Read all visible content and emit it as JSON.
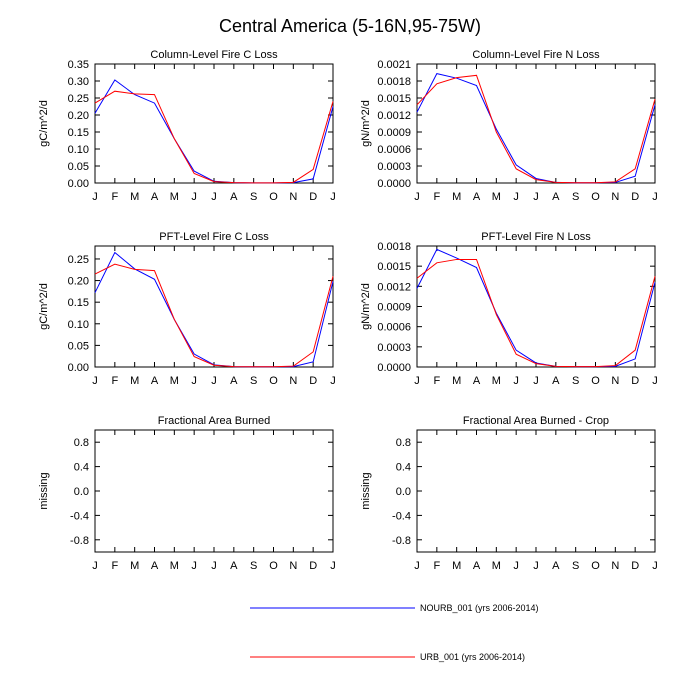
{
  "page_title": "Central America (5-16N,95-75W)",
  "colors": {
    "nourb": "#0000ff",
    "urb": "#ff0000",
    "axis": "#000000"
  },
  "legend": [
    {
      "label": "NOURB_001 (yrs 2006-2014)",
      "color": "#0000ff"
    },
    {
      "label": "URB_001 (yrs 2006-2014)",
      "color": "#ff0000"
    }
  ],
  "chart_data": [
    {
      "type": "line",
      "title": "Column-Level Fire C Loss",
      "ylabel": "gC/m^2/d",
      "xlabel": "",
      "categories": [
        "J",
        "F",
        "M",
        "A",
        "M",
        "J",
        "J",
        "A",
        "S",
        "O",
        "N",
        "D",
        "J"
      ],
      "ylim": [
        0,
        0.35
      ],
      "yticks": [
        "0.00",
        "0.05",
        "0.10",
        "0.15",
        "0.20",
        "0.25",
        "0.30",
        "0.35"
      ],
      "series": [
        {
          "name": "NOURB_001 (yrs 2006-2014)",
          "values": [
            0.205,
            0.303,
            0.26,
            0.235,
            0.13,
            0.035,
            0.005,
            0.001,
            0.0005,
            0.0005,
            0.001,
            0.012,
            0.225
          ]
        },
        {
          "name": "URB_001 (yrs 2006-2014)",
          "values": [
            0.235,
            0.27,
            0.262,
            0.26,
            0.13,
            0.028,
            0.004,
            0.001,
            0.0005,
            0.0005,
            0.002,
            0.04,
            0.24
          ]
        }
      ]
    },
    {
      "type": "line",
      "title": "Column-Level Fire N Loss",
      "ylabel": "gN/m^2/d",
      "xlabel": "",
      "categories": [
        "J",
        "F",
        "M",
        "A",
        "M",
        "J",
        "J",
        "A",
        "S",
        "O",
        "N",
        "D",
        "J"
      ],
      "ylim": [
        0,
        0.0021
      ],
      "yticks": [
        "0.0000",
        "0.0003",
        "0.0006",
        "0.0009",
        "0.0012",
        "0.0015",
        "0.0018",
        "0.0021"
      ],
      "series": [
        {
          "name": "NOURB_001 (yrs 2006-2014)",
          "values": [
            0.00125,
            0.00193,
            0.00185,
            0.00172,
            0.00095,
            0.00032,
            8e-05,
            1e-05,
            5e-06,
            5e-06,
            1e-05,
            0.00012,
            0.00138
          ]
        },
        {
          "name": "URB_001 (yrs 2006-2014)",
          "values": [
            0.00138,
            0.00175,
            0.00186,
            0.0019,
            0.0009,
            0.00025,
            6e-05,
            1e-05,
            5e-06,
            5e-06,
            2e-05,
            0.00025,
            0.00148
          ]
        }
      ]
    },
    {
      "type": "line",
      "title": "PFT-Level Fire C Loss",
      "ylabel": "gC/m^2/d",
      "xlabel": "",
      "categories": [
        "J",
        "F",
        "M",
        "A",
        "M",
        "J",
        "J",
        "A",
        "S",
        "O",
        "N",
        "D",
        "J"
      ],
      "ylim": [
        0,
        0.28
      ],
      "yticks": [
        "0.00",
        "0.05",
        "0.10",
        "0.15",
        "0.20",
        "0.25"
      ],
      "series": [
        {
          "name": "NOURB_001 (yrs 2006-2014)",
          "values": [
            0.172,
            0.265,
            0.227,
            0.203,
            0.11,
            0.03,
            0.005,
            0.001,
            0.0005,
            0.0005,
            0.001,
            0.012,
            0.198
          ]
        },
        {
          "name": "URB_001 (yrs 2006-2014)",
          "values": [
            0.215,
            0.238,
            0.226,
            0.223,
            0.11,
            0.024,
            0.004,
            0.001,
            0.0005,
            0.0005,
            0.002,
            0.035,
            0.21
          ]
        }
      ]
    },
    {
      "type": "line",
      "title": "PFT-Level Fire N Loss",
      "ylabel": "gN/m^2/d",
      "xlabel": "",
      "categories": [
        "J",
        "F",
        "M",
        "A",
        "M",
        "J",
        "J",
        "A",
        "S",
        "O",
        "N",
        "D",
        "J"
      ],
      "ylim": [
        0,
        0.0018
      ],
      "yticks": [
        "0.0000",
        "0.0003",
        "0.0006",
        "0.0009",
        "0.0012",
        "0.0015",
        "0.0018"
      ],
      "series": [
        {
          "name": "NOURB_001 (yrs 2006-2014)",
          "values": [
            0.00117,
            0.00175,
            0.00162,
            0.00148,
            0.0008,
            0.00025,
            6e-05,
            1e-05,
            5e-06,
            5e-06,
            1e-05,
            0.00012,
            0.00126
          ]
        },
        {
          "name": "URB_001 (yrs 2006-2014)",
          "values": [
            0.00132,
            0.00155,
            0.0016,
            0.0016,
            0.00078,
            0.00019,
            5e-05,
            1e-05,
            5e-06,
            5e-06,
            2e-05,
            0.00025,
            0.00135
          ]
        }
      ]
    },
    {
      "type": "line",
      "title": "Fractional Area Burned",
      "ylabel": "missing",
      "xlabel": "",
      "categories": [
        "J",
        "F",
        "M",
        "A",
        "M",
        "J",
        "J",
        "A",
        "S",
        "O",
        "N",
        "D",
        "J"
      ],
      "ylim": [
        -1,
        1
      ],
      "yticks": [
        "-0.8",
        "-0.4",
        "0.0",
        "0.4",
        "0.8"
      ],
      "series": []
    },
    {
      "type": "line",
      "title": "Fractional Area Burned - Crop",
      "ylabel": "missing",
      "xlabel": "",
      "categories": [
        "J",
        "F",
        "M",
        "A",
        "M",
        "J",
        "J",
        "A",
        "S",
        "O",
        "N",
        "D",
        "J"
      ],
      "ylim": [
        -1,
        1
      ],
      "yticks": [
        "-0.8",
        "-0.4",
        "0.0",
        "0.4",
        "0.8"
      ],
      "series": []
    }
  ]
}
